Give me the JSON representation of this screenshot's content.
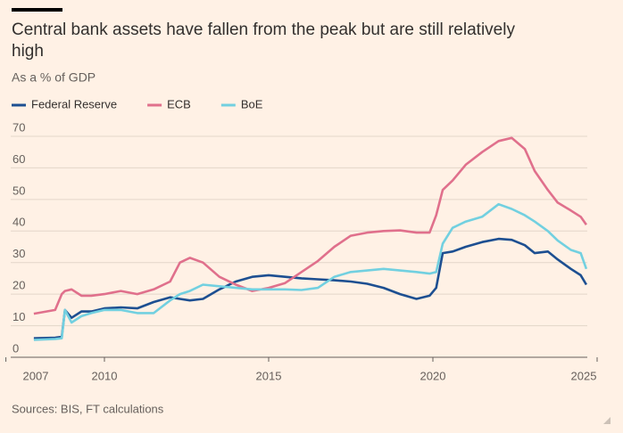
{
  "chart_data": {
    "type": "line",
    "title": "Central bank assets have fallen from the peak but are still relatively high",
    "subtitle": "As a % of GDP",
    "source": "Sources: BIS, FT calculations",
    "x": [
      2007.85,
      2008.5,
      2008.7,
      2008.8,
      2009,
      2009.3,
      2009.6,
      2010,
      2010.5,
      2011,
      2011.5,
      2012,
      2012.3,
      2012.6,
      2013,
      2013.5,
      2014,
      2014.5,
      2015,
      2015.5,
      2016,
      2016.5,
      2017,
      2017.5,
      2018,
      2018.5,
      2019,
      2019.5,
      2019.9,
      2020.1,
      2020.3,
      2020.6,
      2021,
      2021.5,
      2022,
      2022.4,
      2022.8,
      2023.1,
      2023.5,
      2023.8,
      2024.2,
      2024.5,
      2024.67
    ],
    "series": [
      {
        "name": "Federal Reserve",
        "color": "#1d4f91",
        "values": [
          6,
          6.2,
          6.5,
          15,
          12.5,
          14.5,
          14.5,
          15.5,
          15.8,
          15.5,
          17.5,
          19,
          18.5,
          18,
          18.5,
          21.5,
          24,
          25.5,
          26,
          25.5,
          25,
          24.7,
          24.4,
          24,
          23.3,
          22,
          20,
          18.5,
          19.5,
          22,
          33,
          33.5,
          35,
          36.5,
          37.5,
          37.2,
          35.5,
          33,
          33.5,
          31,
          28,
          26,
          23
        ]
      },
      {
        "name": "ECB",
        "color": "#e0708c",
        "values": [
          13.8,
          15,
          20,
          21,
          21.5,
          19.5,
          19.5,
          20,
          21,
          20,
          21.5,
          24,
          30,
          31.5,
          30,
          25.5,
          23,
          21,
          22,
          23.5,
          27,
          30.5,
          35,
          38.5,
          39.5,
          40,
          40.2,
          39.5,
          39.5,
          45,
          53,
          56,
          61,
          65,
          68.5,
          69.5,
          66,
          59,
          53,
          49,
          46.5,
          44.5,
          42
        ]
      },
      {
        "name": "BoE",
        "color": "#72d0e0",
        "values": [
          5.5,
          5.8,
          6,
          15,
          11,
          13,
          14,
          15,
          15,
          14,
          14,
          18,
          20,
          21,
          23,
          22.5,
          22,
          21.5,
          21.5,
          21.5,
          21.3,
          22,
          25.5,
          27,
          27.5,
          28,
          27.5,
          27,
          26.5,
          27,
          36,
          41,
          43,
          44.5,
          48.5,
          47,
          45,
          43,
          40,
          37,
          34,
          33,
          28
        ]
      }
    ],
    "xlim": [
      2007,
      2025
    ],
    "xticks": [
      2007,
      2010,
      2015,
      2020,
      2025
    ],
    "ylim": [
      0,
      70
    ],
    "yticks": [
      0,
      10,
      20,
      30,
      40,
      50,
      60,
      70
    ],
    "grid": true
  }
}
